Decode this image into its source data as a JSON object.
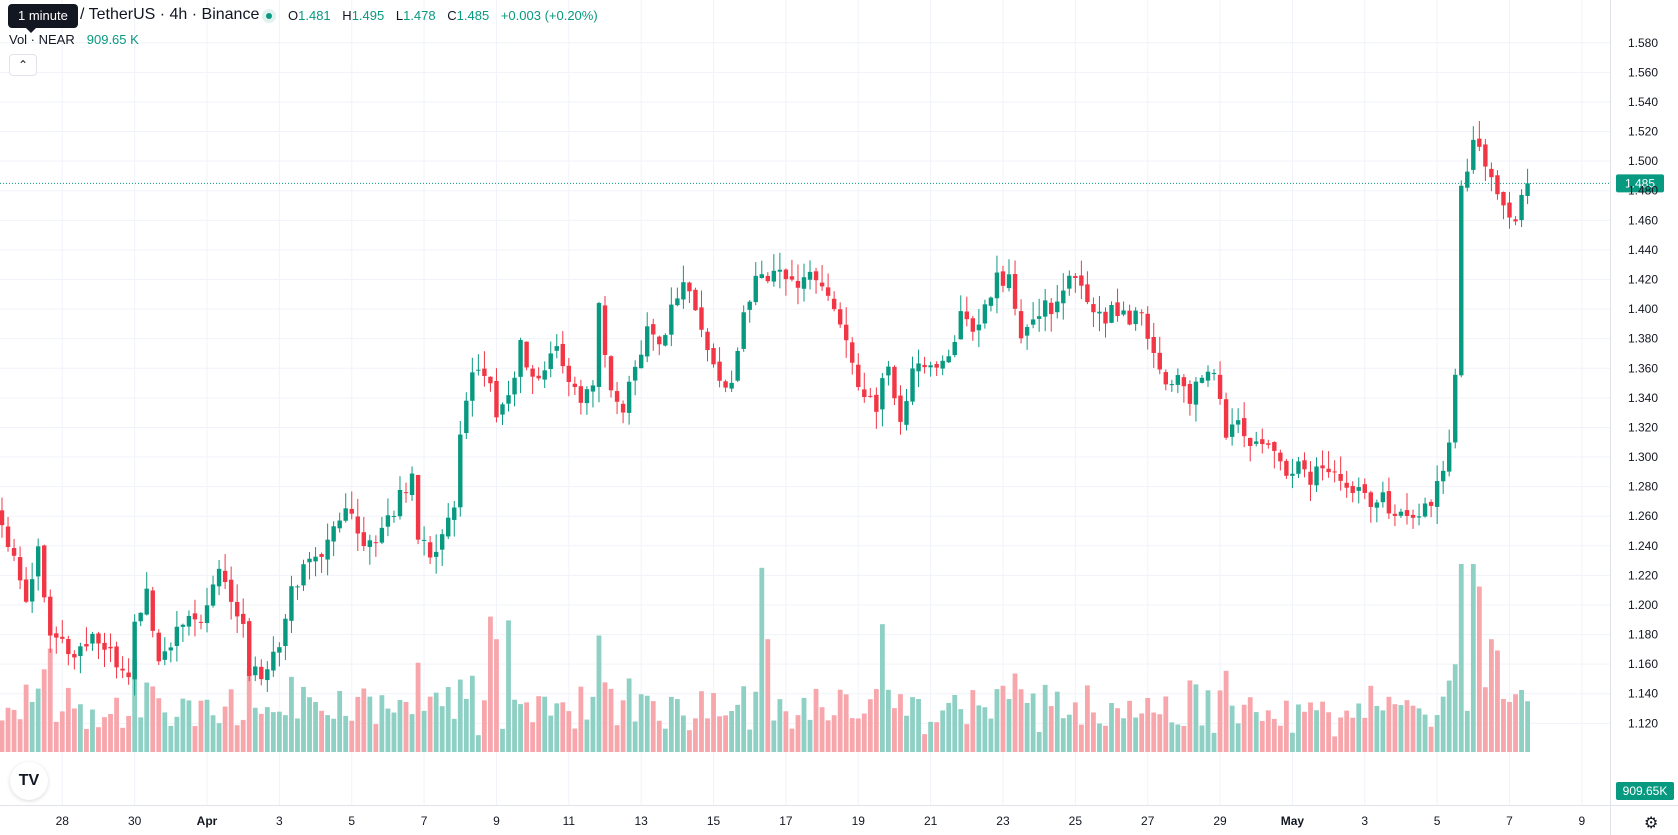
{
  "header": {
    "tooltip": "1 minute",
    "symbol": "/ TetherUS · 4h · Binance",
    "ohlc": {
      "o_label": "O",
      "o": "1.481",
      "h_label": "H",
      "h": "1.495",
      "l_label": "L",
      "l": "1.478",
      "c_label": "C",
      "c": "1.485",
      "change": "+0.003 (+0.20%)"
    },
    "volume_label": "Vol · NEAR",
    "volume_value": "909.65 K"
  },
  "logo": {
    "text": "TV"
  },
  "colors": {
    "up": "#089981",
    "down": "#f23645",
    "vol_up": "#8fd0c4",
    "vol_down": "#f7a6ac",
    "grid": "#f0f3fa"
  },
  "chart_data": {
    "type": "candlestick",
    "interval": "4h",
    "price_axis": {
      "ticks": [
        "1.580",
        "1.560",
        "1.540",
        "1.520",
        "1.500",
        "1.480",
        "1.460",
        "1.440",
        "1.420",
        "1.400",
        "1.380",
        "1.360",
        "1.340",
        "1.320",
        "1.300",
        "1.280",
        "1.260",
        "1.240",
        "1.220",
        "1.200",
        "1.180",
        "1.160",
        "1.140",
        "1.120"
      ],
      "range": [
        1.104,
        1.59
      ],
      "last_price": "1.485",
      "volume_last": "909.65K"
    },
    "time_axis": {
      "labels": [
        {
          "label": "28",
          "bar": 10
        },
        {
          "label": "30",
          "bar": 22
        },
        {
          "label": "Apr",
          "bar": 34
        },
        {
          "label": "3",
          "bar": 46
        },
        {
          "label": "5",
          "bar": 58
        },
        {
          "label": "7",
          "bar": 70
        },
        {
          "label": "9",
          "bar": 82
        },
        {
          "label": "11",
          "bar": 94
        },
        {
          "label": "13",
          "bar": 106
        },
        {
          "label": "15",
          "bar": 118
        },
        {
          "label": "17",
          "bar": 130
        },
        {
          "label": "19",
          "bar": 142
        },
        {
          "label": "21",
          "bar": 154
        },
        {
          "label": "23",
          "bar": 166
        },
        {
          "label": "25",
          "bar": 178
        },
        {
          "label": "27",
          "bar": 190
        },
        {
          "label": "29",
          "bar": 202
        },
        {
          "label": "May",
          "bar": 214
        },
        {
          "label": "3",
          "bar": 226
        },
        {
          "label": "5",
          "bar": 238
        },
        {
          "label": "7",
          "bar": 250
        },
        {
          "label": "9",
          "bar": 262
        }
      ]
    },
    "close_path": [
      [
        0,
        1.255
      ],
      [
        2,
        1.235
      ],
      [
        4,
        1.205
      ],
      [
        6,
        1.237
      ],
      [
        8,
        1.185
      ],
      [
        10,
        1.175
      ],
      [
        12,
        1.165
      ],
      [
        15,
        1.18
      ],
      [
        17,
        1.17
      ],
      [
        19,
        1.16
      ],
      [
        21,
        1.155
      ],
      [
        22,
        1.185
      ],
      [
        24,
        1.21
      ],
      [
        26,
        1.16
      ],
      [
        28,
        1.175
      ],
      [
        30,
        1.185
      ],
      [
        32,
        1.19
      ],
      [
        34,
        1.195
      ],
      [
        36,
        1.225
      ],
      [
        38,
        1.205
      ],
      [
        40,
        1.19
      ],
      [
        41,
        1.155
      ],
      [
        42,
        1.16
      ],
      [
        43,
        1.15
      ],
      [
        44,
        1.16
      ],
      [
        46,
        1.17
      ],
      [
        48,
        1.21
      ],
      [
        50,
        1.225
      ],
      [
        52,
        1.235
      ],
      [
        54,
        1.24
      ],
      [
        56,
        1.262
      ],
      [
        58,
        1.26
      ],
      [
        60,
        1.245
      ],
      [
        62,
        1.24
      ],
      [
        64,
        1.255
      ],
      [
        66,
        1.275
      ],
      [
        68,
        1.285
      ],
      [
        69,
        1.25
      ],
      [
        71,
        1.235
      ],
      [
        73,
        1.245
      ],
      [
        75,
        1.265
      ],
      [
        76,
        1.31
      ],
      [
        78,
        1.355
      ],
      [
        80,
        1.36
      ],
      [
        82,
        1.33
      ],
      [
        84,
        1.34
      ],
      [
        86,
        1.375
      ],
      [
        88,
        1.35
      ],
      [
        90,
        1.36
      ],
      [
        92,
        1.375
      ],
      [
        95,
        1.345
      ],
      [
        96,
        1.34
      ],
      [
        98,
        1.35
      ],
      [
        99,
        1.4
      ],
      [
        101,
        1.34
      ],
      [
        103,
        1.335
      ],
      [
        105,
        1.36
      ],
      [
        107,
        1.39
      ],
      [
        109,
        1.375
      ],
      [
        111,
        1.4
      ],
      [
        113,
        1.42
      ],
      [
        115,
        1.4
      ],
      [
        117,
        1.37
      ],
      [
        119,
        1.355
      ],
      [
        121,
        1.345
      ],
      [
        123,
        1.395
      ],
      [
        125,
        1.425
      ],
      [
        127,
        1.42
      ],
      [
        129,
        1.43
      ],
      [
        131,
        1.415
      ],
      [
        133,
        1.425
      ],
      [
        135,
        1.42
      ],
      [
        137,
        1.41
      ],
      [
        138,
        1.395
      ],
      [
        140,
        1.38
      ],
      [
        141,
        1.36
      ],
      [
        143,
        1.345
      ],
      [
        145,
        1.335
      ],
      [
        147,
        1.36
      ],
      [
        149,
        1.325
      ],
      [
        151,
        1.355
      ],
      [
        153,
        1.365
      ],
      [
        155,
        1.36
      ],
      [
        157,
        1.37
      ],
      [
        159,
        1.395
      ],
      [
        161,
        1.38
      ],
      [
        163,
        1.4
      ],
      [
        165,
        1.42
      ],
      [
        167,
        1.42
      ],
      [
        169,
        1.38
      ],
      [
        171,
        1.39
      ],
      [
        173,
        1.405
      ],
      [
        175,
        1.4
      ],
      [
        177,
        1.42
      ],
      [
        179,
        1.415
      ],
      [
        181,
        1.4
      ],
      [
        183,
        1.395
      ],
      [
        185,
        1.4
      ],
      [
        187,
        1.395
      ],
      [
        189,
        1.4
      ],
      [
        191,
        1.37
      ],
      [
        193,
        1.35
      ],
      [
        195,
        1.355
      ],
      [
        197,
        1.34
      ],
      [
        199,
        1.35
      ],
      [
        201,
        1.36
      ],
      [
        203,
        1.315
      ],
      [
        205,
        1.325
      ],
      [
        207,
        1.305
      ],
      [
        209,
        1.31
      ],
      [
        211,
        1.3
      ],
      [
        213,
        1.29
      ],
      [
        215,
        1.295
      ],
      [
        217,
        1.285
      ],
      [
        219,
        1.295
      ],
      [
        221,
        1.29
      ],
      [
        223,
        1.275
      ],
      [
        225,
        1.285
      ],
      [
        227,
        1.27
      ],
      [
        229,
        1.28
      ],
      [
        231,
        1.255
      ],
      [
        233,
        1.265
      ],
      [
        235,
        1.26
      ],
      [
        237,
        1.27
      ],
      [
        239,
        1.29
      ],
      [
        240,
        1.31
      ],
      [
        241,
        1.36
      ],
      [
        242,
        1.48
      ],
      [
        244,
        1.51
      ],
      [
        246,
        1.5
      ],
      [
        248,
        1.48
      ],
      [
        249,
        1.47
      ],
      [
        251,
        1.46
      ],
      [
        252,
        1.475
      ],
      [
        253,
        1.485
      ]
    ],
    "volume_spikes": [
      [
        8,
        0.55
      ],
      [
        81,
        0.72
      ],
      [
        82,
        0.6
      ],
      [
        84,
        0.7
      ],
      [
        126,
        0.98
      ],
      [
        127,
        0.6
      ],
      [
        146,
        0.68
      ],
      [
        244,
        1.0
      ],
      [
        245,
        0.88
      ],
      [
        247,
        0.6
      ],
      [
        248,
        0.54
      ]
    ]
  }
}
